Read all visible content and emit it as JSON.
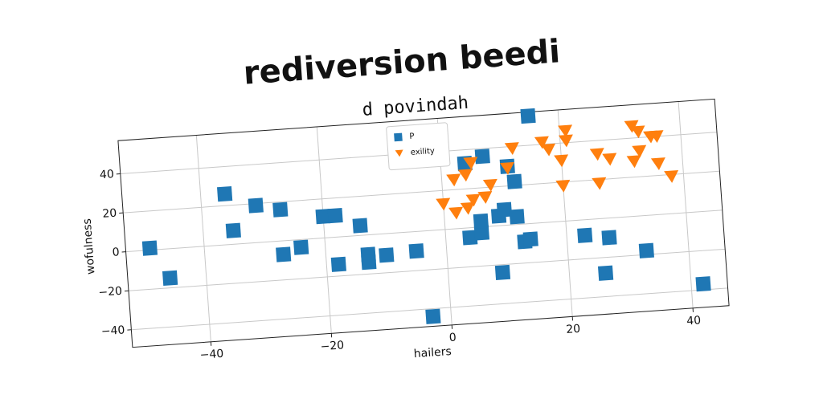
{
  "chart_data": {
    "type": "scatter",
    "title": "rediversion beedi",
    "subtitle": "d povindah",
    "x_label": "hailers",
    "y_label": "wofulness",
    "xlim": [
      -53,
      46
    ],
    "ylim": [
      -49,
      57
    ],
    "xticks": [
      {
        "value": -40,
        "label": "−40"
      },
      {
        "value": -20,
        "label": "−20"
      },
      0,
      20,
      40
    ],
    "yticks": [
      {
        "value": -40,
        "label": "−40"
      },
      {
        "value": -20,
        "label": "−20"
      },
      0,
      20,
      40
    ],
    "grid": true,
    "legend": "upper center",
    "series": [
      {
        "name": "P",
        "color": "#1f77b4",
        "marker": "square",
        "x": [
          -49,
          -46,
          -36,
          -35,
          -31,
          -27,
          -27,
          -24,
          -20,
          -18,
          -18,
          -14,
          -13,
          -13,
          -10,
          -5,
          -3,
          4,
          7,
          11,
          12,
          15,
          4,
          6,
          6,
          9,
          10,
          12,
          13,
          14,
          9,
          23,
          27,
          26,
          33,
          42
        ],
        "y": [
          1,
          -15,
          26,
          7,
          19,
          16,
          -7,
          -4,
          11,
          11,
          -14,
          5,
          -10,
          -14,
          -11,
          -10,
          -44,
          33,
          36,
          30,
          22,
          55,
          -5,
          -3,
          3,
          5,
          8,
          4,
          -9,
          -8,
          -24,
          -8,
          -10,
          -28,
          -18,
          -37
        ]
      },
      {
        "name": "exility",
        "color": "#ff7f0e",
        "marker": "triangle-down",
        "x": [
          0,
          2,
          4,
          5,
          2,
          4,
          5,
          7,
          8,
          12,
          11,
          17,
          18,
          20,
          21,
          21,
          20,
          26,
          26,
          28,
          32,
          33,
          33,
          32,
          35,
          36,
          38,
          36
        ],
        "y": [
          13,
          25,
          27,
          33,
          8,
          10,
          14,
          15,
          21,
          39,
          29,
          41,
          37,
          31,
          46,
          41,
          18,
          33,
          18,
          30,
          46,
          43,
          33,
          28,
          40,
          26,
          19,
          40
        ]
      }
    ]
  }
}
